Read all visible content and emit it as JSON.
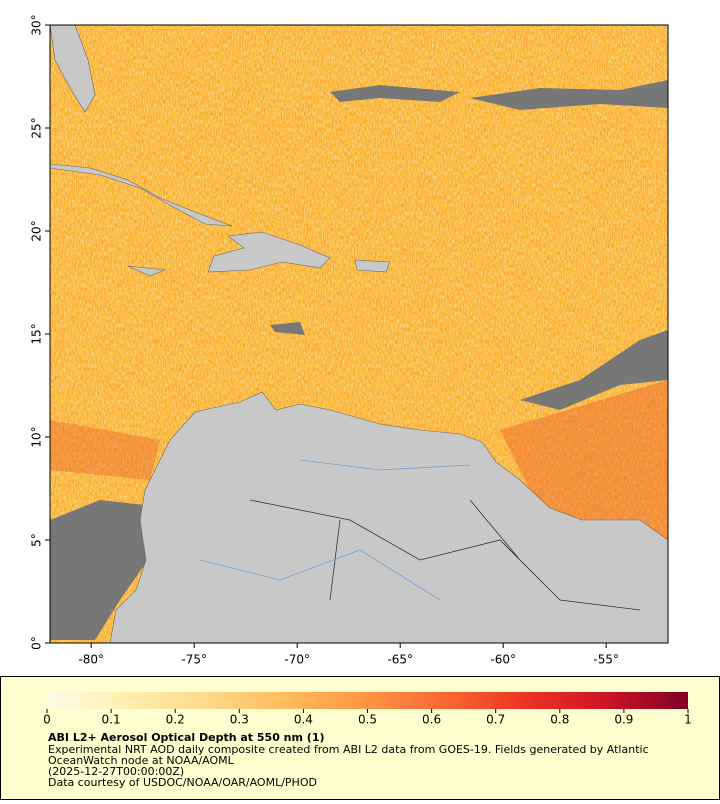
{
  "chart_data": {
    "type": "map",
    "xlim": [
      -82,
      -52
    ],
    "ylim": [
      0,
      30
    ],
    "xticks": [
      {
        "value": -80,
        "label": "-80°"
      },
      {
        "value": -75,
        "label": "-75°"
      },
      {
        "value": -70,
        "label": "-70°"
      },
      {
        "value": -65,
        "label": "-65°"
      },
      {
        "value": -60,
        "label": "-60°"
      },
      {
        "value": -55,
        "label": "-55°"
      }
    ],
    "yticks": [
      {
        "value": 0,
        "label": "0°"
      },
      {
        "value": 5,
        "label": "5°"
      },
      {
        "value": 10,
        "label": "10°"
      },
      {
        "value": 15,
        "label": "15°"
      },
      {
        "value": 20,
        "label": "20°"
      },
      {
        "value": 25,
        "label": "25°"
      },
      {
        "value": 30,
        "label": "30°"
      }
    ],
    "colorbar": {
      "lim": [
        0,
        1
      ],
      "ticks": [
        0,
        0.1,
        0.2,
        0.3,
        0.4,
        0.5,
        0.6,
        0.7,
        0.8,
        0.9,
        1
      ],
      "colors": [
        "#fffbe6",
        "#ffefb0",
        "#fed98a",
        "#febb5c",
        "#fd9445",
        "#fb6531",
        "#ec3223",
        "#cc1424",
        "#800026"
      ]
    },
    "title": "ABI L2+ Aerosol Optical Depth at 550 nm (1)",
    "notes": [
      "Experimental NRT AOD daily composite created from ABI L2 data from GOES-19. Fields generated by Atlantic",
      "OceanWatch node at NOAA/AOML",
      "(2025-12-27T00:00:00Z)",
      "Data courtesy of USDOC/NOAA/OAR/AOML/PHOD"
    ]
  }
}
